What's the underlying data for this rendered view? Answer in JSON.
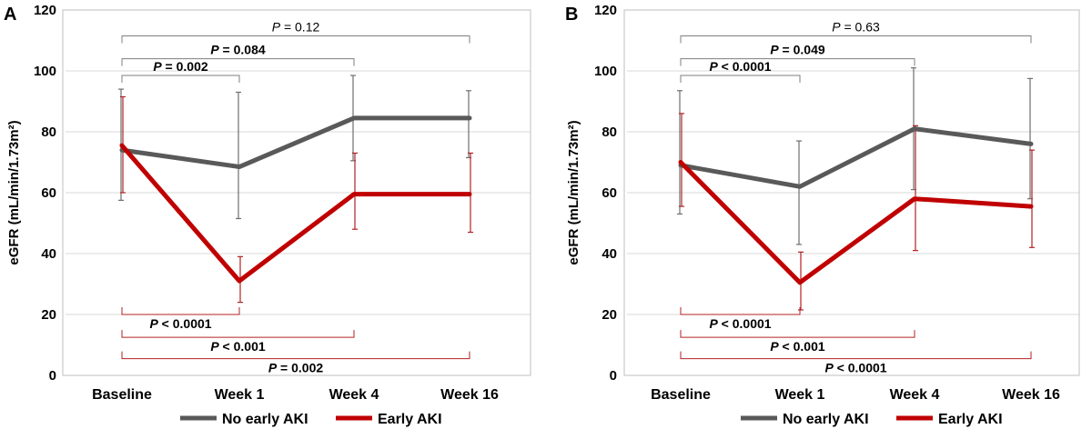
{
  "chart_data": [
    {
      "panel": "A",
      "type": "line",
      "ylabel": "eGFR (mL/min/1.73m²)",
      "ylim": [
        0,
        120
      ],
      "yticks": [
        0,
        20,
        40,
        60,
        80,
        100,
        120
      ],
      "categories": [
        "Baseline",
        "Week 1",
        "Week 4",
        "Week 16"
      ],
      "series": [
        {
          "name": "No early AKI",
          "color": "#595959",
          "values": [
            74,
            68.5,
            84.5,
            84.5
          ],
          "err_low": [
            57.5,
            51.5,
            70.5,
            71.5
          ],
          "err_high": [
            94,
            93,
            98.5,
            93.5
          ]
        },
        {
          "name": "Early AKI",
          "color": "#C00000",
          "values": [
            75.5,
            31,
            59.5,
            59.5
          ],
          "err_low": [
            60,
            24,
            48,
            47
          ],
          "err_high": [
            91.5,
            39,
            73,
            73
          ]
        }
      ],
      "comparisons": [
        {
          "series": "No early AKI",
          "from": 0,
          "to": 3,
          "prefix": "P",
          "text": " = 0.12",
          "bold": false,
          "y": 111.5
        },
        {
          "series": "No early AKI",
          "from": 0,
          "to": 2,
          "prefix": "P",
          "text": " = 0.084",
          "bold": true,
          "y": 104
        },
        {
          "series": "No early AKI",
          "from": 0,
          "to": 1,
          "prefix": "P",
          "text": " = 0.002",
          "bold": true,
          "y": 98.5
        },
        {
          "series": "Early AKI",
          "from": 0,
          "to": 1,
          "prefix": "P",
          "text": " < 0.0001",
          "bold": true,
          "y": 20
        },
        {
          "series": "Early AKI",
          "from": 0,
          "to": 2,
          "prefix": "P",
          "text": " < 0.001",
          "bold": true,
          "y": 12.5
        },
        {
          "series": "Early AKI",
          "from": 0,
          "to": 3,
          "prefix": "P",
          "text": " = 0.002",
          "bold": true,
          "y": 5.5
        }
      ]
    },
    {
      "panel": "B",
      "type": "line",
      "ylabel": "eGFR (mL/min/1.73m²)",
      "ylim": [
        0,
        120
      ],
      "yticks": [
        0,
        20,
        40,
        60,
        80,
        100,
        120
      ],
      "categories": [
        "Baseline",
        "Week 1",
        "Week 4",
        "Week 16"
      ],
      "series": [
        {
          "name": "No early AKI",
          "color": "#595959",
          "values": [
            69,
            62,
            81,
            76
          ],
          "err_low": [
            53,
            43,
            61,
            58
          ],
          "err_high": [
            93.5,
            77,
            101,
            97.5
          ]
        },
        {
          "name": "Early AKI",
          "color": "#C00000",
          "values": [
            70,
            30.5,
            58,
            55.5
          ],
          "err_low": [
            55.5,
            21.5,
            41,
            42
          ],
          "err_high": [
            86,
            40.5,
            82,
            74
          ]
        }
      ],
      "comparisons": [
        {
          "series": "No early AKI",
          "from": 0,
          "to": 3,
          "prefix": "P",
          "text": " = 0.63",
          "bold": false,
          "y": 111.5
        },
        {
          "series": "No early AKI",
          "from": 0,
          "to": 2,
          "prefix": "P",
          "text": " = 0.049",
          "bold": true,
          "y": 104
        },
        {
          "series": "No early AKI",
          "from": 0,
          "to": 1,
          "prefix": "P",
          "text": " < 0.0001",
          "bold": true,
          "y": 98.5
        },
        {
          "series": "Early AKI",
          "from": 0,
          "to": 1,
          "prefix": "P",
          "text": " < 0.0001",
          "bold": true,
          "y": 20
        },
        {
          "series": "Early AKI",
          "from": 0,
          "to": 2,
          "prefix": "P",
          "text": " < 0.001",
          "bold": true,
          "y": 12.5
        },
        {
          "series": "Early AKI",
          "from": 0,
          "to": 3,
          "prefix": "P",
          "text": " < 0.0001",
          "bold": true,
          "y": 5.5
        }
      ]
    }
  ]
}
